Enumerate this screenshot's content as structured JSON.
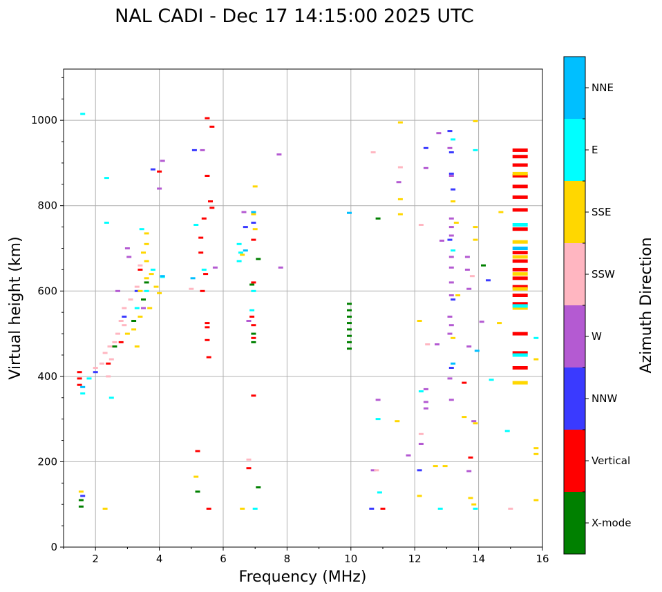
{
  "chart_data": {
    "type": "scatter",
    "title": "NAL CADI - Dec 17 14:15:00 2025 UTC",
    "xlabel": "Frequency (MHz)",
    "ylabel": "Virtual height (km)",
    "xlim": [
      1,
      16
    ],
    "ylim": [
      0,
      1120
    ],
    "xticks": [
      2,
      4,
      6,
      8,
      10,
      12,
      14,
      16
    ],
    "yticks": [
      0,
      200,
      400,
      600,
      800,
      1000
    ],
    "grid": true,
    "colorbar": {
      "title": "Azimuth Direction",
      "categories": [
        "X-mode",
        "Vertical",
        "NNW",
        "W",
        "SSW",
        "SSE",
        "E",
        "NNE"
      ],
      "colors": [
        "#008000",
        "#ff0000",
        "#3a3aff",
        "#b45ad2",
        "#ffb6c1",
        "#ffd700",
        "#00ffff",
        "#00bfff"
      ]
    },
    "series": [
      {
        "name": "X-mode",
        "points": [
          [
            1.55,
            95
          ],
          [
            1.55,
            110
          ],
          [
            5.2,
            130
          ],
          [
            6.9,
            615
          ],
          [
            6.95,
            500
          ],
          [
            6.95,
            480
          ],
          [
            9.95,
            465
          ],
          [
            9.95,
            480
          ],
          [
            9.95,
            495
          ],
          [
            9.95,
            510
          ],
          [
            9.95,
            525
          ],
          [
            9.95,
            540
          ],
          [
            9.95,
            555
          ],
          [
            9.95,
            570
          ],
          [
            10.85,
            770
          ],
          [
            14.15,
            660
          ],
          [
            7.1,
            675
          ],
          [
            7.1,
            140
          ],
          [
            3.5,
            580
          ],
          [
            3.6,
            620
          ],
          [
            2.6,
            470
          ],
          [
            3.2,
            530
          ]
        ]
      },
      {
        "name": "Vertical",
        "points": [
          [
            1.5,
            380
          ],
          [
            1.5,
            395
          ],
          [
            1.5,
            410
          ],
          [
            5.5,
            1005
          ],
          [
            5.65,
            985
          ],
          [
            5.5,
            870
          ],
          [
            5.6,
            810
          ],
          [
            5.65,
            795
          ],
          [
            5.4,
            770
          ],
          [
            5.3,
            725
          ],
          [
            5.3,
            690
          ],
          [
            5.45,
            640
          ],
          [
            5.35,
            600
          ],
          [
            5.5,
            525
          ],
          [
            5.5,
            515
          ],
          [
            5.5,
            485
          ],
          [
            5.55,
            445
          ],
          [
            5.2,
            225
          ],
          [
            5.55,
            90
          ],
          [
            6.95,
            720
          ],
          [
            6.95,
            620
          ],
          [
            6.9,
            540
          ],
          [
            6.95,
            520
          ],
          [
            6.95,
            490
          ],
          [
            6.95,
            355
          ],
          [
            6.8,
            185
          ],
          [
            11.0,
            90
          ],
          [
            13.55,
            385
          ],
          [
            13.75,
            210
          ],
          [
            15.3,
            930
          ],
          [
            15.3,
            915
          ],
          [
            15.3,
            895
          ],
          [
            15.3,
            870
          ],
          [
            15.3,
            845
          ],
          [
            15.3,
            820
          ],
          [
            15.3,
            790
          ],
          [
            15.3,
            745
          ],
          [
            15.3,
            690
          ],
          [
            15.3,
            670
          ],
          [
            15.3,
            650
          ],
          [
            15.3,
            630
          ],
          [
            15.3,
            610
          ],
          [
            15.3,
            590
          ],
          [
            15.3,
            570
          ],
          [
            15.3,
            500
          ],
          [
            15.3,
            455
          ],
          [
            15.3,
            420
          ],
          [
            4.0,
            880
          ],
          [
            3.4,
            650
          ],
          [
            2.4,
            430
          ],
          [
            2.8,
            480
          ]
        ]
      },
      {
        "name": "NNW",
        "points": [
          [
            1.6,
            120
          ],
          [
            3.8,
            885
          ],
          [
            5.1,
            930
          ],
          [
            6.7,
            750
          ],
          [
            6.95,
            760
          ],
          [
            13.1,
            975
          ],
          [
            13.15,
            925
          ],
          [
            13.15,
            875
          ],
          [
            13.2,
            838
          ],
          [
            13.1,
            720
          ],
          [
            13.2,
            580
          ],
          [
            13.15,
            420
          ],
          [
            14.3,
            625
          ],
          [
            12.35,
            935
          ],
          [
            10.65,
            90
          ],
          [
            12.15,
            180
          ],
          [
            2.0,
            410
          ],
          [
            3.3,
            600
          ],
          [
            2.9,
            540
          ]
        ]
      },
      {
        "name": "W",
        "points": [
          [
            3.05,
            680
          ],
          [
            3.0,
            700
          ],
          [
            4.1,
            905
          ],
          [
            4.0,
            840
          ],
          [
            5.35,
            930
          ],
          [
            5.75,
            655
          ],
          [
            6.65,
            785
          ],
          [
            7.75,
            920
          ],
          [
            7.8,
            655
          ],
          [
            11.5,
            855
          ],
          [
            12.75,
            970
          ],
          [
            12.35,
            888
          ],
          [
            13.1,
            935
          ],
          [
            13.15,
            870
          ],
          [
            12.85,
            718
          ],
          [
            13.15,
            770
          ],
          [
            13.15,
            750
          ],
          [
            13.15,
            730
          ],
          [
            13.15,
            680
          ],
          [
            13.15,
            655
          ],
          [
            13.15,
            620
          ],
          [
            13.15,
            590
          ],
          [
            13.1,
            540
          ],
          [
            13.15,
            520
          ],
          [
            13.1,
            500
          ],
          [
            12.7,
            475
          ],
          [
            13.1,
            395
          ],
          [
            13.15,
            345
          ],
          [
            12.35,
            370
          ],
          [
            12.35,
            340
          ],
          [
            12.35,
            325
          ],
          [
            12.2,
            242
          ],
          [
            11.8,
            215
          ],
          [
            13.65,
            680
          ],
          [
            13.65,
            650
          ],
          [
            13.7,
            605
          ],
          [
            13.7,
            470
          ],
          [
            13.85,
            295
          ],
          [
            14.1,
            528
          ],
          [
            13.7,
            178
          ],
          [
            10.85,
            345
          ],
          [
            10.7,
            180
          ],
          [
            6.8,
            530
          ],
          [
            2.7,
            600
          ],
          [
            3.5,
            560
          ]
        ]
      },
      {
        "name": "SSW",
        "points": [
          [
            2.4,
            400
          ],
          [
            2.5,
            440
          ],
          [
            2.6,
            480
          ],
          [
            2.7,
            500
          ],
          [
            2.8,
            530
          ],
          [
            2.9,
            520
          ],
          [
            2.45,
            470
          ],
          [
            2.3,
            455
          ],
          [
            2.2,
            430
          ],
          [
            2.0,
            420
          ],
          [
            2.9,
            560
          ],
          [
            3.1,
            580
          ],
          [
            3.3,
            610
          ],
          [
            3.4,
            660
          ],
          [
            11.55,
            890
          ],
          [
            10.7,
            925
          ],
          [
            12.2,
            755
          ],
          [
            13.8,
            635
          ],
          [
            12.4,
            475
          ],
          [
            12.2,
            265
          ],
          [
            10.8,
            180
          ],
          [
            15.0,
            90
          ],
          [
            6.8,
            205
          ],
          [
            5.0,
            605
          ]
        ]
      },
      {
        "name": "SSE",
        "points": [
          [
            1.55,
            130
          ],
          [
            2.3,
            90
          ],
          [
            3.6,
            735
          ],
          [
            3.6,
            710
          ],
          [
            3.5,
            690
          ],
          [
            3.6,
            670
          ],
          [
            3.4,
            600
          ],
          [
            3.6,
            630
          ],
          [
            3.75,
            640
          ],
          [
            3.9,
            610
          ],
          [
            4.0,
            595
          ],
          [
            3.2,
            510
          ],
          [
            3.0,
            500
          ],
          [
            3.4,
            540
          ],
          [
            3.3,
            470
          ],
          [
            3.7,
            560
          ],
          [
            5.15,
            165
          ],
          [
            6.6,
            90
          ],
          [
            7.0,
            845
          ],
          [
            6.95,
            780
          ],
          [
            7.0,
            745
          ],
          [
            6.6,
            685
          ],
          [
            11.55,
            995
          ],
          [
            11.55,
            815
          ],
          [
            11.55,
            780
          ],
          [
            11.45,
            295
          ],
          [
            12.15,
            530
          ],
          [
            12.15,
            120
          ],
          [
            12.95,
            190
          ],
          [
            12.65,
            190
          ],
          [
            13.2,
            810
          ],
          [
            13.3,
            760
          ],
          [
            13.35,
            590
          ],
          [
            13.2,
            490
          ],
          [
            13.55,
            305
          ],
          [
            13.9,
            720
          ],
          [
            13.9,
            750
          ],
          [
            13.9,
            290
          ],
          [
            13.75,
            115
          ],
          [
            13.85,
            100
          ],
          [
            13.9,
            998
          ],
          [
            14.7,
            785
          ],
          [
            14.65,
            525
          ],
          [
            15.3,
            385
          ],
          [
            15.3,
            875
          ],
          [
            15.3,
            715
          ],
          [
            15.3,
            680
          ],
          [
            15.3,
            640
          ],
          [
            15.3,
            605
          ],
          [
            15.3,
            560
          ],
          [
            15.8,
            440
          ],
          [
            15.8,
            232
          ],
          [
            15.8,
            218
          ],
          [
            15.8,
            110
          ]
        ]
      },
      {
        "name": "E",
        "points": [
          [
            2.35,
            865
          ],
          [
            2.35,
            760
          ],
          [
            1.6,
            1015
          ],
          [
            3.45,
            745
          ],
          [
            4.1,
            633
          ],
          [
            3.8,
            650
          ],
          [
            3.6,
            600
          ],
          [
            3.3,
            560
          ],
          [
            1.6,
            360
          ],
          [
            1.8,
            395
          ],
          [
            5.15,
            755
          ],
          [
            5.4,
            650
          ],
          [
            6.5,
            710
          ],
          [
            6.55,
            690
          ],
          [
            6.5,
            670
          ],
          [
            6.95,
            600
          ],
          [
            6.9,
            555
          ],
          [
            7.0,
            90
          ],
          [
            10.85,
            300
          ],
          [
            10.9,
            128
          ],
          [
            12.8,
            90
          ],
          [
            13.2,
            955
          ],
          [
            13.2,
            695
          ],
          [
            13.9,
            930
          ],
          [
            13.9,
            90
          ],
          [
            14.4,
            392
          ],
          [
            14.9,
            272
          ],
          [
            15.3,
            755
          ],
          [
            15.3,
            565
          ],
          [
            15.3,
            450
          ],
          [
            15.8,
            490
          ],
          [
            12.2,
            365
          ],
          [
            2.5,
            350
          ]
        ]
      },
      {
        "name": "NNE",
        "points": [
          [
            1.6,
            375
          ],
          [
            4.1,
            635
          ],
          [
            5.05,
            630
          ],
          [
            6.7,
            695
          ],
          [
            6.95,
            785
          ],
          [
            9.95,
            783
          ],
          [
            13.95,
            460
          ],
          [
            15.3,
            700
          ],
          [
            13.2,
            430
          ]
        ]
      }
    ]
  }
}
